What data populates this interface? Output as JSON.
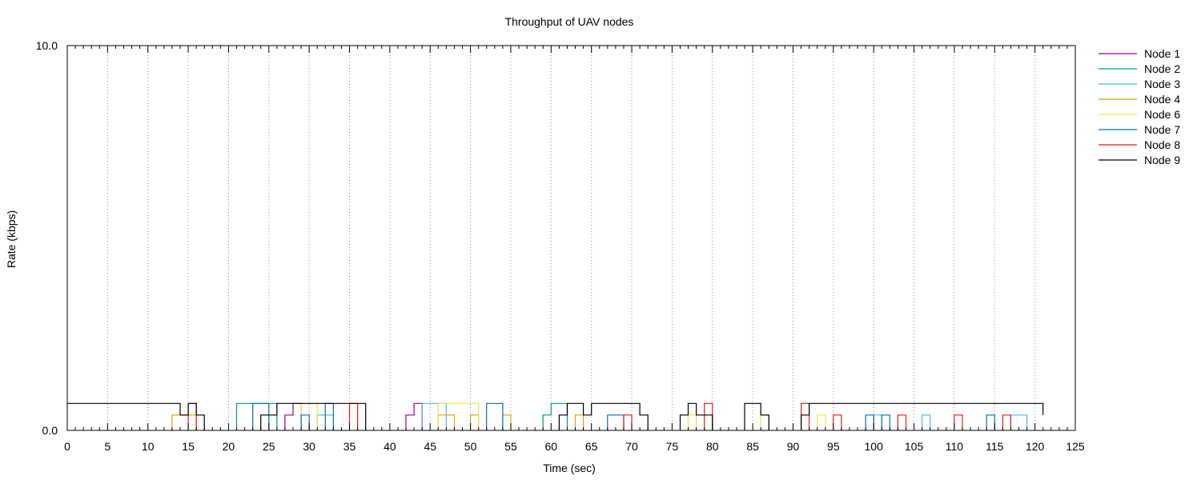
{
  "chart_data": {
    "type": "line",
    "title": "Throughput of UAV nodes",
    "xlabel": "Time (sec)",
    "ylabel": "Rate (kbps)",
    "xlim": [
      0,
      125
    ],
    "ylim": [
      0,
      10
    ],
    "x_ticks": [
      "0",
      "5",
      "10",
      "15",
      "20",
      "25",
      "30",
      "35",
      "40",
      "45",
      "50",
      "55",
      "60",
      "65",
      "70",
      "75",
      "80",
      "85",
      "90",
      "95",
      "100",
      "105",
      "110",
      "115",
      "120",
      "125"
    ],
    "y_ticks": [
      "0.0",
      "10.0"
    ],
    "grid": "vertical dotted at major x ticks",
    "legend_position": "outside-right-top",
    "series": [
      {
        "name": "Node 1",
        "color": "#94008f",
        "segments": [
          [
            [
              27,
              0
            ],
            [
              27,
              0.4
            ],
            [
              28,
              0.4
            ],
            [
              28,
              0.7
            ],
            [
              29,
              0.7
            ],
            [
              29,
              0
            ]
          ],
          [
            [
              42,
              0
            ],
            [
              42,
              0.4
            ],
            [
              43,
              0.4
            ],
            [
              43,
              0.7
            ],
            [
              44,
              0.7
            ],
            [
              44,
              0
            ]
          ]
        ]
      },
      {
        "name": "Node 2",
        "color": "#009e73",
        "segments": [
          [
            [
              21,
              0
            ],
            [
              21,
              0.7
            ],
            [
              26,
              0.7
            ],
            [
              26,
              0
            ]
          ],
          [
            [
              59,
              0
            ],
            [
              59,
              0.4
            ],
            [
              60,
              0.4
            ],
            [
              60,
              0.7
            ],
            [
              62,
              0.7
            ],
            [
              62,
              0
            ]
          ]
        ]
      },
      {
        "name": "Node 3",
        "color": "#56b4e9",
        "segments": [
          [
            [
              31,
              0
            ],
            [
              31,
              0.4
            ],
            [
              33,
              0.4
            ],
            [
              33,
              0
            ]
          ],
          [
            [
              44,
              0
            ],
            [
              44,
              0.7
            ],
            [
              47,
              0.7
            ],
            [
              47,
              0
            ]
          ],
          [
            [
              100,
              0
            ],
            [
              100,
              0.4
            ],
            [
              101,
              0.4
            ],
            [
              101,
              0
            ]
          ],
          [
            [
              106,
              0
            ],
            [
              106,
              0.4
            ],
            [
              107,
              0.4
            ],
            [
              107,
              0
            ]
          ],
          [
            [
              117,
              0
            ],
            [
              117,
              0.4
            ],
            [
              119,
              0.4
            ],
            [
              119,
              0
            ]
          ]
        ]
      },
      {
        "name": "Node 4",
        "color": "#e69f00",
        "segments": [
          [
            [
              13,
              0
            ],
            [
              13,
              0.4
            ],
            [
              16,
              0.4
            ],
            [
              16,
              0
            ]
          ],
          [
            [
              46,
              0
            ],
            [
              46,
              0.4
            ],
            [
              48,
              0.4
            ],
            [
              48,
              0
            ]
          ],
          [
            [
              50,
              0
            ],
            [
              50,
              0.4
            ],
            [
              51,
              0.4
            ],
            [
              51,
              0
            ]
          ],
          [
            [
              54,
              0
            ],
            [
              54,
              0.4
            ],
            [
              55,
              0.4
            ],
            [
              55,
              0
            ]
          ],
          [
            [
              63,
              0
            ],
            [
              63,
              0.4
            ],
            [
              64,
              0.4
            ],
            [
              64,
              0
            ]
          ]
        ]
      },
      {
        "name": "Node 6",
        "color": "#f0e442",
        "segments": [
          [
            [
              29,
              0
            ],
            [
              29,
              0.7
            ],
            [
              31,
              0.7
            ],
            [
              31,
              0
            ]
          ],
          [
            [
              46,
              0
            ],
            [
              46,
              0.7
            ],
            [
              51,
              0.7
            ],
            [
              51,
              0
            ]
          ],
          [
            [
              77,
              0
            ],
            [
              77,
              0.4
            ],
            [
              78,
              0.4
            ],
            [
              78,
              0
            ]
          ],
          [
            [
              86,
              0
            ],
            [
              86,
              0.4
            ],
            [
              87,
              0.4
            ],
            [
              87,
              0
            ]
          ],
          [
            [
              93,
              0
            ],
            [
              93,
              0.4
            ],
            [
              94,
              0.4
            ],
            [
              94,
              0
            ]
          ]
        ]
      },
      {
        "name": "Node 7",
        "color": "#0072b2",
        "segments": [
          [
            [
              23,
              0
            ],
            [
              23,
              0.7
            ],
            [
              25,
              0.7
            ],
            [
              25,
              0
            ]
          ],
          [
            [
              29,
              0
            ],
            [
              29,
              0.4
            ],
            [
              30,
              0.4
            ],
            [
              30,
              0
            ]
          ],
          [
            [
              32,
              0
            ],
            [
              32,
              0.7
            ],
            [
              33,
              0.7
            ],
            [
              33,
              0
            ]
          ],
          [
            [
              52,
              0
            ],
            [
              52,
              0.7
            ],
            [
              54,
              0.7
            ],
            [
              54,
              0
            ]
          ],
          [
            [
              67,
              0
            ],
            [
              67,
              0.4
            ],
            [
              69,
              0.4
            ],
            [
              69,
              0
            ]
          ],
          [
            [
              99,
              0
            ],
            [
              99,
              0.4
            ],
            [
              100,
              0.4
            ],
            [
              100,
              0
            ]
          ],
          [
            [
              101,
              0
            ],
            [
              101,
              0.4
            ],
            [
              102,
              0.4
            ],
            [
              102,
              0
            ]
          ],
          [
            [
              114,
              0
            ],
            [
              114,
              0.4
            ],
            [
              115,
              0.4
            ],
            [
              115,
              0
            ]
          ]
        ]
      },
      {
        "name": "Node 8",
        "color": "#e51e10",
        "segments": [
          [
            [
              15,
              0
            ],
            [
              15,
              0.7
            ],
            [
              16,
              0.7
            ],
            [
              16,
              0
            ]
          ],
          [
            [
              35,
              0
            ],
            [
              35,
              0.7
            ],
            [
              36,
              0.7
            ],
            [
              36,
              0
            ]
          ],
          [
            [
              69,
              0
            ],
            [
              69,
              0.4
            ],
            [
              70,
              0.4
            ],
            [
              70,
              0
            ]
          ],
          [
            [
              79,
              0
            ],
            [
              79,
              0.7
            ],
            [
              80,
              0.7
            ],
            [
              80,
              0
            ]
          ],
          [
            [
              91,
              0
            ],
            [
              91,
              0.7
            ],
            [
              92,
              0.7
            ],
            [
              92,
              0
            ]
          ],
          [
            [
              95,
              0
            ],
            [
              95,
              0.4
            ],
            [
              96,
              0.4
            ],
            [
              96,
              0
            ]
          ],
          [
            [
              103,
              0
            ],
            [
              103,
              0.4
            ],
            [
              104,
              0.4
            ],
            [
              104,
              0
            ]
          ],
          [
            [
              110,
              0
            ],
            [
              110,
              0.4
            ],
            [
              111,
              0.4
            ],
            [
              111,
              0
            ]
          ],
          [
            [
              116,
              0
            ],
            [
              116,
              0.4
            ],
            [
              117,
              0.4
            ],
            [
              117,
              0
            ]
          ]
        ]
      },
      {
        "name": "Node 9",
        "color": "#000000",
        "segments": [
          [
            [
              0,
              0.7
            ],
            [
              14,
              0.7
            ],
            [
              14,
              0.4
            ],
            [
              15,
              0.4
            ],
            [
              15,
              0.7
            ],
            [
              16,
              0.7
            ],
            [
              16,
              0.4
            ],
            [
              17,
              0.4
            ],
            [
              17,
              0
            ]
          ],
          [
            [
              24,
              0
            ],
            [
              24,
              0.4
            ],
            [
              26,
              0.4
            ],
            [
              26,
              0.7
            ],
            [
              37,
              0.7
            ],
            [
              37,
              0
            ]
          ],
          [
            [
              61,
              0
            ],
            [
              61,
              0.4
            ],
            [
              62,
              0.4
            ],
            [
              62,
              0.7
            ],
            [
              64,
              0.7
            ],
            [
              64,
              0.4
            ],
            [
              65,
              0.4
            ],
            [
              65,
              0.7
            ],
            [
              71,
              0.7
            ],
            [
              71,
              0.4
            ],
            [
              72,
              0.4
            ],
            [
              72,
              0
            ]
          ],
          [
            [
              76,
              0
            ],
            [
              76,
              0.4
            ],
            [
              77,
              0.4
            ],
            [
              77,
              0.7
            ],
            [
              78,
              0.7
            ],
            [
              78,
              0.4
            ],
            [
              80,
              0.4
            ],
            [
              80,
              0
            ]
          ],
          [
            [
              84,
              0
            ],
            [
              84,
              0.7
            ],
            [
              86,
              0.7
            ],
            [
              86,
              0.4
            ],
            [
              87,
              0.4
            ],
            [
              87,
              0
            ]
          ],
          [
            [
              91,
              0
            ],
            [
              91,
              0.4
            ],
            [
              92,
              0.4
            ],
            [
              92,
              0.7
            ],
            [
              121,
              0.7
            ],
            [
              121,
              0.4
            ]
          ]
        ]
      }
    ]
  }
}
